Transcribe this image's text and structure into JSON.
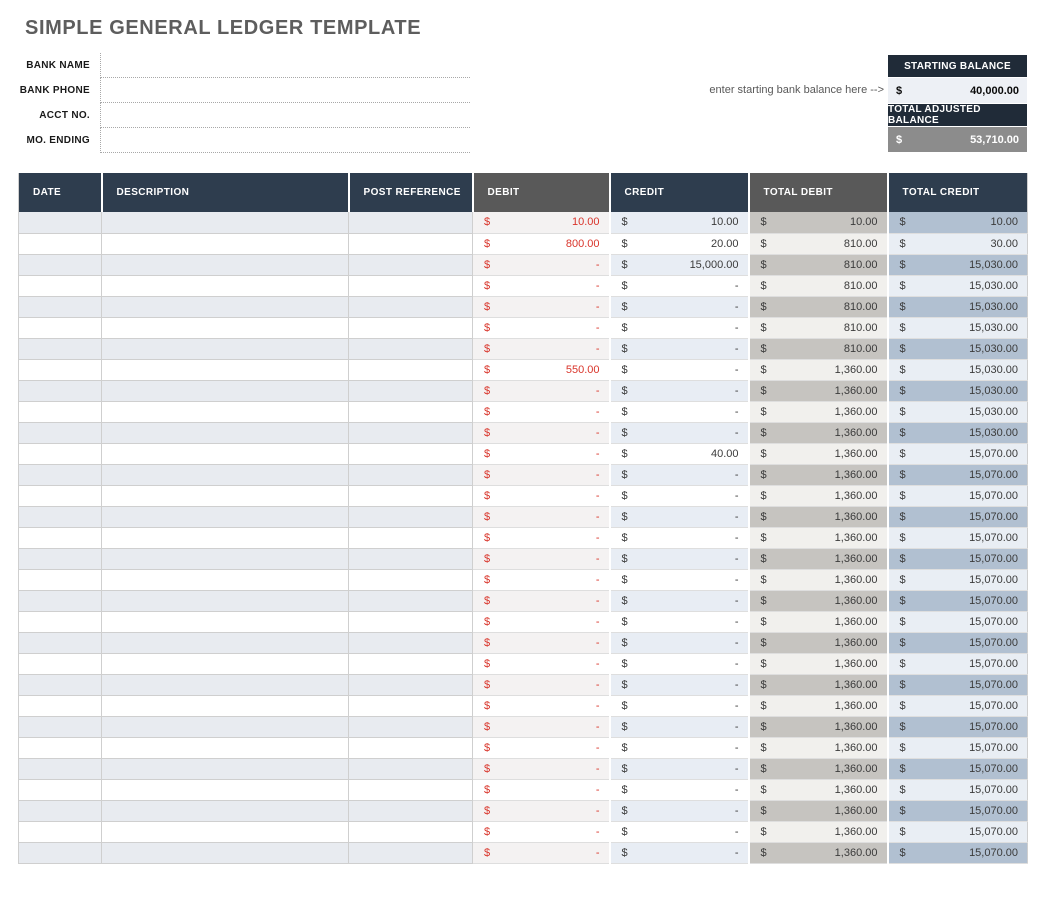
{
  "page": {
    "title": "SIMPLE GENERAL LEDGER TEMPLATE"
  },
  "bank_info": {
    "fields": [
      {
        "label": "BANK NAME",
        "value": ""
      },
      {
        "label": "BANK PHONE",
        "value": ""
      },
      {
        "label": "ACCT NO.",
        "value": ""
      },
      {
        "label": "MO. ENDING",
        "value": ""
      }
    ]
  },
  "balances": {
    "hint": "enter starting bank balance here -->",
    "starting": {
      "label": "STARTING BALANCE",
      "currency": "$",
      "value": "40,000.00"
    },
    "adjusted": {
      "label": "TOTAL ADJUSTED BALANCE",
      "currency": "$",
      "value": "53,710.00"
    }
  },
  "ledger": {
    "currency": "$",
    "columns": [
      "DATE",
      "DESCRIPTION",
      "POST REFERENCE",
      "DEBIT",
      "CREDIT",
      "TOTAL DEBIT",
      "TOTAL CREDIT"
    ],
    "rows": [
      {
        "date": "",
        "description": "",
        "post_reference": "",
        "debit": "10.00",
        "credit": "10.00",
        "total_debit": "10.00",
        "total_credit": "10.00"
      },
      {
        "date": "",
        "description": "",
        "post_reference": "",
        "debit": "800.00",
        "credit": "20.00",
        "total_debit": "810.00",
        "total_credit": "30.00"
      },
      {
        "date": "",
        "description": "",
        "post_reference": "",
        "debit": "-",
        "credit": "15,000.00",
        "total_debit": "810.00",
        "total_credit": "15,030.00"
      },
      {
        "date": "",
        "description": "",
        "post_reference": "",
        "debit": "-",
        "credit": "-",
        "total_debit": "810.00",
        "total_credit": "15,030.00"
      },
      {
        "date": "",
        "description": "",
        "post_reference": "",
        "debit": "-",
        "credit": "-",
        "total_debit": "810.00",
        "total_credit": "15,030.00"
      },
      {
        "date": "",
        "description": "",
        "post_reference": "",
        "debit": "-",
        "credit": "-",
        "total_debit": "810.00",
        "total_credit": "15,030.00"
      },
      {
        "date": "",
        "description": "",
        "post_reference": "",
        "debit": "-",
        "credit": "-",
        "total_debit": "810.00",
        "total_credit": "15,030.00"
      },
      {
        "date": "",
        "description": "",
        "post_reference": "",
        "debit": "550.00",
        "credit": "-",
        "total_debit": "1,360.00",
        "total_credit": "15,030.00"
      },
      {
        "date": "",
        "description": "",
        "post_reference": "",
        "debit": "-",
        "credit": "-",
        "total_debit": "1,360.00",
        "total_credit": "15,030.00"
      },
      {
        "date": "",
        "description": "",
        "post_reference": "",
        "debit": "-",
        "credit": "-",
        "total_debit": "1,360.00",
        "total_credit": "15,030.00"
      },
      {
        "date": "",
        "description": "",
        "post_reference": "",
        "debit": "-",
        "credit": "-",
        "total_debit": "1,360.00",
        "total_credit": "15,030.00"
      },
      {
        "date": "",
        "description": "",
        "post_reference": "",
        "debit": "-",
        "credit": "40.00",
        "total_debit": "1,360.00",
        "total_credit": "15,070.00"
      },
      {
        "date": "",
        "description": "",
        "post_reference": "",
        "debit": "-",
        "credit": "-",
        "total_debit": "1,360.00",
        "total_credit": "15,070.00"
      },
      {
        "date": "",
        "description": "",
        "post_reference": "",
        "debit": "-",
        "credit": "-",
        "total_debit": "1,360.00",
        "total_credit": "15,070.00"
      },
      {
        "date": "",
        "description": "",
        "post_reference": "",
        "debit": "-",
        "credit": "-",
        "total_debit": "1,360.00",
        "total_credit": "15,070.00"
      },
      {
        "date": "",
        "description": "",
        "post_reference": "",
        "debit": "-",
        "credit": "-",
        "total_debit": "1,360.00",
        "total_credit": "15,070.00"
      },
      {
        "date": "",
        "description": "",
        "post_reference": "",
        "debit": "-",
        "credit": "-",
        "total_debit": "1,360.00",
        "total_credit": "15,070.00"
      },
      {
        "date": "",
        "description": "",
        "post_reference": "",
        "debit": "-",
        "credit": "-",
        "total_debit": "1,360.00",
        "total_credit": "15,070.00"
      },
      {
        "date": "",
        "description": "",
        "post_reference": "",
        "debit": "-",
        "credit": "-",
        "total_debit": "1,360.00",
        "total_credit": "15,070.00"
      },
      {
        "date": "",
        "description": "",
        "post_reference": "",
        "debit": "-",
        "credit": "-",
        "total_debit": "1,360.00",
        "total_credit": "15,070.00"
      },
      {
        "date": "",
        "description": "",
        "post_reference": "",
        "debit": "-",
        "credit": "-",
        "total_debit": "1,360.00",
        "total_credit": "15,070.00"
      },
      {
        "date": "",
        "description": "",
        "post_reference": "",
        "debit": "-",
        "credit": "-",
        "total_debit": "1,360.00",
        "total_credit": "15,070.00"
      },
      {
        "date": "",
        "description": "",
        "post_reference": "",
        "debit": "-",
        "credit": "-",
        "total_debit": "1,360.00",
        "total_credit": "15,070.00"
      },
      {
        "date": "",
        "description": "",
        "post_reference": "",
        "debit": "-",
        "credit": "-",
        "total_debit": "1,360.00",
        "total_credit": "15,070.00"
      },
      {
        "date": "",
        "description": "",
        "post_reference": "",
        "debit": "-",
        "credit": "-",
        "total_debit": "1,360.00",
        "total_credit": "15,070.00"
      },
      {
        "date": "",
        "description": "",
        "post_reference": "",
        "debit": "-",
        "credit": "-",
        "total_debit": "1,360.00",
        "total_credit": "15,070.00"
      },
      {
        "date": "",
        "description": "",
        "post_reference": "",
        "debit": "-",
        "credit": "-",
        "total_debit": "1,360.00",
        "total_credit": "15,070.00"
      },
      {
        "date": "",
        "description": "",
        "post_reference": "",
        "debit": "-",
        "credit": "-",
        "total_debit": "1,360.00",
        "total_credit": "15,070.00"
      },
      {
        "date": "",
        "description": "",
        "post_reference": "",
        "debit": "-",
        "credit": "-",
        "total_debit": "1,360.00",
        "total_credit": "15,070.00"
      },
      {
        "date": "",
        "description": "",
        "post_reference": "",
        "debit": "-",
        "credit": "-",
        "total_debit": "1,360.00",
        "total_credit": "15,070.00"
      },
      {
        "date": "",
        "description": "",
        "post_reference": "",
        "debit": "-",
        "credit": "-",
        "total_debit": "1,360.00",
        "total_credit": "15,070.00"
      }
    ]
  },
  "colors": {
    "table_header_navy": "#2e3d4e",
    "table_header_gray": "#595959",
    "balance_header_navy": "#202b38",
    "debit_red": "#d9352b",
    "stripe_base": "#e8ebf0",
    "stripe_debit": "#f4f2f2",
    "stripe_credit": "#e8edf4",
    "stripe_total_debit": "#c6c4c0",
    "stripe_total_credit": "#b1c0d1",
    "even_total_debit": "#f1f0ed",
    "even_total_credit": "#e9eef4",
    "starting_value_bg": "#edf0f5",
    "adjusted_value_bg": "#8c8c8c"
  }
}
